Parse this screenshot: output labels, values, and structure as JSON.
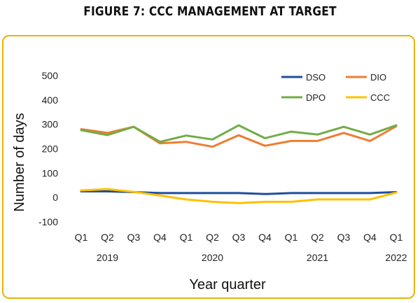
{
  "figure_title": "FIGURE 7: CCC MANAGEMENT AT TARGET",
  "chart_data": {
    "type": "line",
    "title": "",
    "xlabel": "Year quarter",
    "ylabel": "Number of days",
    "ylim": [
      -100,
      500
    ],
    "yticks": [
      500,
      400,
      300,
      200,
      100,
      0,
      -100
    ],
    "categories": [
      "Q1",
      "Q2",
      "Q3",
      "Q4",
      "Q1",
      "Q2",
      "Q3",
      "Q4",
      "Q1",
      "Q2",
      "Q3",
      "Q4",
      "Q1"
    ],
    "year_labels": [
      {
        "label": "2019",
        "center_index": 1
      },
      {
        "label": "2020",
        "center_index": 5
      },
      {
        "label": "2021",
        "center_index": 9
      },
      {
        "label": "2022",
        "center_index": 12
      }
    ],
    "grid": false,
    "legend_position": "top-right",
    "series": [
      {
        "name": "DSO",
        "color": "#1f4e9c",
        "values": [
          25,
          25,
          22,
          18,
          18,
          18,
          18,
          14,
          18,
          18,
          18,
          18,
          22
        ]
      },
      {
        "name": "DIO",
        "color": "#ed7d31",
        "values": [
          280,
          265,
          290,
          222,
          228,
          208,
          255,
          212,
          232,
          232,
          265,
          232,
          292
        ]
      },
      {
        "name": "DPO",
        "color": "#70ad47",
        "values": [
          276,
          256,
          290,
          228,
          254,
          238,
          296,
          243,
          270,
          258,
          290,
          258,
          296
        ]
      },
      {
        "name": "CCC",
        "color": "#ffc000",
        "values": [
          29,
          34,
          23,
          8,
          -8,
          -18,
          -23,
          -18,
          -18,
          -8,
          -8,
          -8,
          20
        ]
      }
    ]
  }
}
